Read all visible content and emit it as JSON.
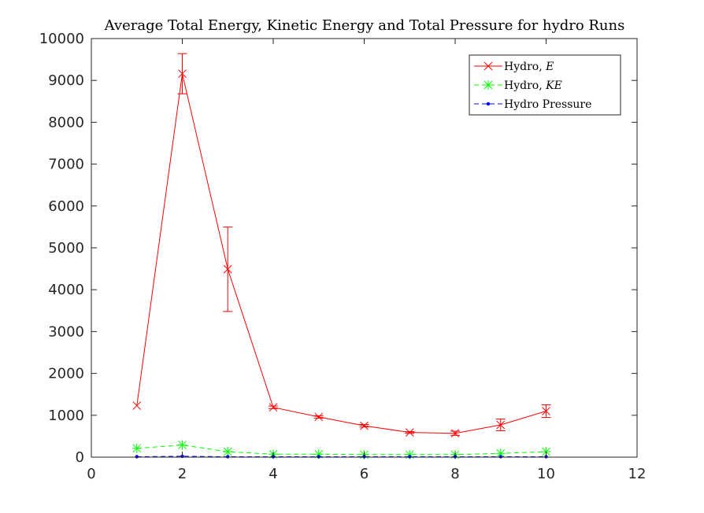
{
  "chart_data": {
    "type": "line",
    "title": "Average Total Energy, Kinetic Energy and Total Pressure for hydro Runs",
    "xlim": [
      0,
      12
    ],
    "ylim": [
      0,
      10000
    ],
    "x_ticks": [
      0,
      2,
      4,
      6,
      8,
      10,
      12
    ],
    "y_ticks": [
      0,
      1000,
      2000,
      3000,
      4000,
      5000,
      6000,
      7000,
      8000,
      9000,
      10000
    ],
    "grid": false,
    "legend_position": "top-right",
    "series": [
      {
        "name": "Hydro, E",
        "name_plain": "Hydro, ",
        "name_math": "E",
        "color": "#ff0000",
        "line_style": "solid",
        "marker": "x",
        "x": [
          1,
          2,
          3,
          4,
          5,
          6,
          7,
          8,
          9,
          10
        ],
        "y": [
          1230,
          9160,
          4490,
          1190,
          960,
          750,
          590,
          570,
          770,
          1100
        ],
        "error": [
          0,
          480,
          1010,
          30,
          30,
          30,
          20,
          50,
          140,
          150
        ]
      },
      {
        "name": "Hydro, KE",
        "name_plain": "Hydro, ",
        "name_math": "KE",
        "color": "#00ff00",
        "line_style": "dashed",
        "marker": "asterisk",
        "x": [
          1,
          2,
          3,
          4,
          5,
          6,
          7,
          8,
          9,
          10
        ],
        "y": [
          210,
          290,
          130,
          70,
          70,
          60,
          60,
          60,
          90,
          130
        ]
      },
      {
        "name": "Hydro Pressure",
        "name_plain": "Hydro Pressure",
        "name_math": "",
        "color": "#0000ff",
        "line_style": "dashed",
        "marker": "dot",
        "x": [
          1,
          2,
          3,
          4,
          5,
          6,
          7,
          8,
          9,
          10
        ],
        "y": [
          10,
          20,
          10,
          10,
          10,
          10,
          10,
          10,
          10,
          10
        ]
      }
    ]
  }
}
